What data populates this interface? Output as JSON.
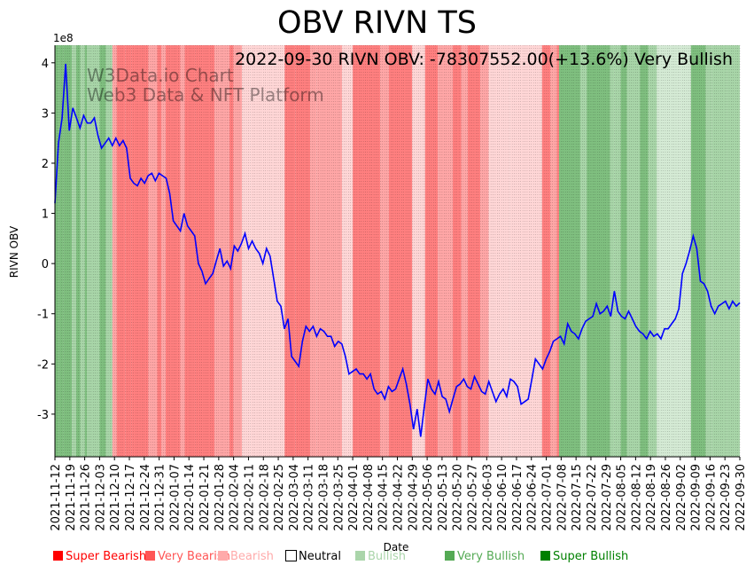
{
  "chart_data": {
    "type": "line",
    "title": "OBV RIVN TS",
    "annotation": "2022-09-30 RIVN OBV: -78307552.00(+13.6%) Very Bullish",
    "watermark": [
      "W3Data.io Chart",
      "Web3 Data & NFT Platform"
    ],
    "xlabel": "Date",
    "ylabel": "RIVN OBV",
    "y_scale_label": "1e8",
    "ylim": [
      -3.85,
      4.35
    ],
    "yticks": [
      -3,
      -2,
      -1,
      0,
      1,
      2,
      3,
      4
    ],
    "xticks": [
      "2021-11-12",
      "2021-11-19",
      "2021-11-26",
      "2021-12-03",
      "2021-12-10",
      "2021-12-17",
      "2021-12-24",
      "2021-12-31",
      "2022-01-07",
      "2022-01-14",
      "2022-01-21",
      "2022-01-28",
      "2022-02-04",
      "2022-02-11",
      "2022-02-18",
      "2022-02-25",
      "2022-03-04",
      "2022-03-11",
      "2022-03-18",
      "2022-03-25",
      "2022-04-01",
      "2022-04-08",
      "2022-04-15",
      "2022-04-22",
      "2022-04-29",
      "2022-05-06",
      "2022-05-13",
      "2022-05-20",
      "2022-05-27",
      "2022-06-03",
      "2022-06-10",
      "2022-06-17",
      "2022-06-24",
      "2022-07-01",
      "2022-07-08",
      "2022-07-15",
      "2022-07-22",
      "2022-07-29",
      "2022-08-05",
      "2022-08-12",
      "2022-08-19",
      "2022-08-26",
      "2022-09-02",
      "2022-09-09",
      "2022-09-16",
      "2022-09-23",
      "2022-09-30"
    ],
    "series": [
      {
        "name": "RIVN OBV",
        "color": "#0000ff",
        "values": [
          1.2,
          2.4,
          2.9,
          3.98,
          2.65,
          3.1,
          2.9,
          2.7,
          2.95,
          2.8,
          2.8,
          2.9,
          2.55,
          2.3,
          2.4,
          2.5,
          2.35,
          2.5,
          2.35,
          2.45,
          2.3,
          1.7,
          1.6,
          1.55,
          1.7,
          1.6,
          1.75,
          1.8,
          1.65,
          1.8,
          1.75,
          1.7,
          1.4,
          0.85,
          0.75,
          0.65,
          1.0,
          0.75,
          0.65,
          0.55,
          0.0,
          -0.15,
          -0.4,
          -0.3,
          -0.2,
          0.05,
          0.3,
          -0.05,
          0.05,
          -0.1,
          0.35,
          0.25,
          0.4,
          0.6,
          0.3,
          0.45,
          0.3,
          0.2,
          0.0,
          0.3,
          0.15,
          -0.3,
          -0.75,
          -0.85,
          -1.3,
          -1.1,
          -1.85,
          -1.95,
          -2.05,
          -1.55,
          -1.25,
          -1.35,
          -1.25,
          -1.45,
          -1.3,
          -1.35,
          -1.45,
          -1.45,
          -1.65,
          -1.55,
          -1.6,
          -1.85,
          -2.2,
          -2.15,
          -2.1,
          -2.2,
          -2.2,
          -2.3,
          -2.2,
          -2.5,
          -2.6,
          -2.55,
          -2.7,
          -2.45,
          -2.55,
          -2.5,
          -2.3,
          -2.1,
          -2.4,
          -2.8,
          -3.3,
          -2.9,
          -3.45,
          -2.85,
          -2.3,
          -2.5,
          -2.6,
          -2.35,
          -2.65,
          -2.7,
          -2.95,
          -2.7,
          -2.45,
          -2.4,
          -2.3,
          -2.45,
          -2.5,
          -2.25,
          -2.4,
          -2.55,
          -2.6,
          -2.35,
          -2.55,
          -2.75,
          -2.6,
          -2.5,
          -2.65,
          -2.3,
          -2.35,
          -2.45,
          -2.8,
          -2.75,
          -2.7,
          -2.3,
          -1.9,
          -2.0,
          -2.1,
          -1.9,
          -1.75,
          -1.55,
          -1.5,
          -1.45,
          -1.6,
          -1.2,
          -1.35,
          -1.4,
          -1.5,
          -1.3,
          -1.15,
          -1.1,
          -1.05,
          -0.8,
          -1.0,
          -0.95,
          -0.85,
          -1.05,
          -0.55,
          -0.95,
          -1.05,
          -1.1,
          -0.95,
          -1.1,
          -1.25,
          -1.35,
          -1.4,
          -1.5,
          -1.35,
          -1.45,
          -1.4,
          -1.5,
          -1.3,
          -1.3,
          -1.2,
          -1.1,
          -0.9,
          -0.2,
          0.0,
          0.25,
          0.55,
          0.3,
          -0.35,
          -0.4,
          -0.55,
          -0.85,
          -1.0,
          -0.85,
          -0.8,
          -0.75,
          -0.9,
          -0.75,
          -0.85,
          -0.78
        ]
      }
    ],
    "regimes": [
      {
        "from": "2021-11-12",
        "to": "2021-11-14",
        "state": "Very Bullish"
      },
      {
        "from": "2021-11-14",
        "to": "2021-11-16",
        "state": "Very Bullish"
      },
      {
        "from": "2021-11-16",
        "to": "2021-11-20",
        "state": "Very Bullish"
      },
      {
        "from": "2021-11-20",
        "to": "2021-11-22",
        "state": "Bullish"
      },
      {
        "from": "2021-11-22",
        "to": "2021-11-24",
        "state": "Very Bullish"
      },
      {
        "from": "2021-11-24",
        "to": "2021-11-26",
        "state": "Bullish"
      },
      {
        "from": "2021-11-26",
        "to": "2021-11-27",
        "state": "Very Bullish"
      },
      {
        "from": "2021-11-27",
        "to": "2021-12-03",
        "state": "Bullish"
      },
      {
        "from": "2021-12-03",
        "to": "2021-12-06",
        "state": "Very Bullish"
      },
      {
        "from": "2021-12-06",
        "to": "2021-12-09",
        "state": "Bullish"
      },
      {
        "from": "2021-12-09",
        "to": "2021-12-11",
        "state": "Bearish"
      },
      {
        "from": "2021-12-11",
        "to": "2021-12-15",
        "state": "Very Bearish"
      },
      {
        "from": "2021-12-15",
        "to": "2021-12-18",
        "state": "Very Bearish"
      },
      {
        "from": "2021-12-18",
        "to": "2021-12-26",
        "state": "Very Bearish"
      },
      {
        "from": "2021-12-26",
        "to": "2021-12-30",
        "state": "Bearish"
      },
      {
        "from": "2021-12-30",
        "to": "2022-01-01",
        "state": "Very Bearish"
      },
      {
        "from": "2022-01-01",
        "to": "2022-01-03",
        "state": "Bearish"
      },
      {
        "from": "2022-01-03",
        "to": "2022-01-10",
        "state": "Very Bearish"
      },
      {
        "from": "2022-01-10",
        "to": "2022-01-12",
        "state": "Bearish"
      },
      {
        "from": "2022-01-12",
        "to": "2022-01-17",
        "state": "Very Bearish"
      },
      {
        "from": "2022-01-17",
        "to": "2022-01-26",
        "state": "Very Bearish"
      },
      {
        "from": "2022-01-26",
        "to": "2022-02-02",
        "state": "Bearish"
      },
      {
        "from": "2022-02-02",
        "to": "2022-02-04",
        "state": "Very Bearish"
      },
      {
        "from": "2022-02-04",
        "to": "2022-02-08",
        "state": "Bearish"
      },
      {
        "from": "2022-02-08",
        "to": "2022-02-12",
        "state": "Neutral-Bearish"
      },
      {
        "from": "2022-02-12",
        "to": "2022-02-28",
        "state": "Neutral-Bearish"
      },
      {
        "from": "2022-02-28",
        "to": "2022-03-05",
        "state": "Very Bearish"
      },
      {
        "from": "2022-03-05",
        "to": "2022-03-12",
        "state": "Very Bearish"
      },
      {
        "from": "2022-03-12",
        "to": "2022-03-15",
        "state": "Bearish"
      },
      {
        "from": "2022-03-15",
        "to": "2022-03-27",
        "state": "Bearish"
      },
      {
        "from": "2022-03-27",
        "to": "2022-04-01",
        "state": "Neutral-Bearish"
      },
      {
        "from": "2022-04-01",
        "to": "2022-04-14",
        "state": "Very Bearish"
      },
      {
        "from": "2022-04-14",
        "to": "2022-04-18",
        "state": "Bearish"
      },
      {
        "from": "2022-04-18",
        "to": "2022-04-29",
        "state": "Very Bearish"
      },
      {
        "from": "2022-04-29",
        "to": "2022-05-05",
        "state": "Neutral-Bearish"
      },
      {
        "from": "2022-05-05",
        "to": "2022-05-11",
        "state": "Very Bearish"
      },
      {
        "from": "2022-05-11",
        "to": "2022-05-18",
        "state": "Bearish"
      },
      {
        "from": "2022-05-18",
        "to": "2022-05-22",
        "state": "Very Bearish"
      },
      {
        "from": "2022-05-22",
        "to": "2022-05-25",
        "state": "Bearish"
      },
      {
        "from": "2022-05-25",
        "to": "2022-05-31",
        "state": "Very Bearish"
      },
      {
        "from": "2022-05-31",
        "to": "2022-06-04",
        "state": "Bearish"
      },
      {
        "from": "2022-06-04",
        "to": "2022-06-14",
        "state": "Neutral-Bearish"
      },
      {
        "from": "2022-06-14",
        "to": "2022-06-29",
        "state": "Neutral-Bearish"
      },
      {
        "from": "2022-06-29",
        "to": "2022-07-03",
        "state": "Very Bearish"
      },
      {
        "from": "2022-07-03",
        "to": "2022-07-06",
        "state": "Bearish"
      },
      {
        "from": "2022-07-06",
        "to": "2022-07-07",
        "state": "Very Bearish"
      },
      {
        "from": "2022-07-07",
        "to": "2022-07-17",
        "state": "Very Bullish"
      },
      {
        "from": "2022-07-17",
        "to": "2022-07-20",
        "state": "Bullish"
      },
      {
        "from": "2022-07-20",
        "to": "2022-07-31",
        "state": "Very Bullish"
      },
      {
        "from": "2022-07-31",
        "to": "2022-08-02",
        "state": "Bullish"
      },
      {
        "from": "2022-08-02",
        "to": "2022-08-05",
        "state": "Bullish"
      },
      {
        "from": "2022-08-05",
        "to": "2022-08-08",
        "state": "Very Bullish"
      },
      {
        "from": "2022-08-08",
        "to": "2022-08-14",
        "state": "Bullish"
      },
      {
        "from": "2022-08-14",
        "to": "2022-08-18",
        "state": "Very Bullish"
      },
      {
        "from": "2022-08-18",
        "to": "2022-08-22",
        "state": "Bullish"
      },
      {
        "from": "2022-08-22",
        "to": "2022-08-25",
        "state": "Neutral-Bullish"
      },
      {
        "from": "2022-08-25",
        "to": "2022-09-02",
        "state": "Neutral-Bullish"
      },
      {
        "from": "2022-09-02",
        "to": "2022-09-07",
        "state": "Neutral-Bullish"
      },
      {
        "from": "2022-09-07",
        "to": "2022-09-14",
        "state": "Very Bullish"
      },
      {
        "from": "2022-09-14",
        "to": "2022-09-17",
        "state": "Bullish"
      },
      {
        "from": "2022-09-17",
        "to": "2022-09-24",
        "state": "Bullish"
      },
      {
        "from": "2022-09-24",
        "to": "2022-09-30",
        "state": "Bullish"
      }
    ],
    "regime_colors": {
      "Super Bullish": "#008000",
      "Very Bullish": "#7fbf7f",
      "Bullish": "#a8d5a8",
      "Neutral-Bullish": "#d4ead4",
      "Neutral-Bearish": "#ffd6d6",
      "Bearish": "#ffa6a6",
      "Very Bearish": "#ff7f7f",
      "Super Bearish": "#ff0000"
    },
    "legend": [
      {
        "label": "Super Bearish",
        "color": "#ff0000",
        "text_color": "#ff0000"
      },
      {
        "label": "Very Bearish",
        "color": "#ff5555",
        "text_color": "#ff5555"
      },
      {
        "label": "Bearish",
        "color": "#ffaaaa",
        "text_color": "#ffaaaa"
      },
      {
        "label": "Neutral",
        "color": "#ffffff",
        "text_color": "#000000",
        "outline": true
      },
      {
        "label": "Bullish",
        "color": "#aad5aa",
        "text_color": "#aad5aa"
      },
      {
        "label": "Very Bullish",
        "color": "#55aa55",
        "text_color": "#55aa55"
      },
      {
        "label": "Super Bullish",
        "color": "#008000",
        "text_color": "#008000"
      }
    ]
  }
}
